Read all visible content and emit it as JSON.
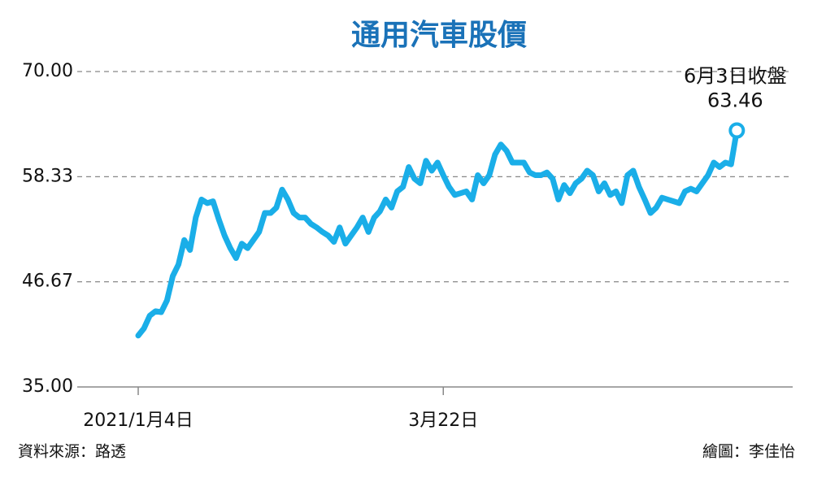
{
  "chart_data": {
    "type": "line",
    "title": "通用汽車股價",
    "annotation": "6月3日收盤",
    "source": "資料來源：路透",
    "credit": "繪圖：李佳怡",
    "categories": [
      "2021/1月4日",
      null,
      null,
      null,
      null,
      null,
      null,
      null,
      null,
      null,
      null,
      null,
      null,
      null,
      null,
      null,
      null,
      null,
      null,
      null,
      null,
      null,
      null,
      null,
      null,
      null,
      null,
      null,
      null,
      null,
      null,
      null,
      null,
      null,
      null,
      null,
      null,
      null,
      null,
      null,
      null,
      null,
      null,
      null,
      null,
      null,
      null,
      null,
      null,
      null,
      null,
      null,
      null,
      "3月22日",
      null,
      null,
      null,
      null,
      null,
      null,
      null,
      null,
      null,
      null,
      null,
      null,
      null,
      null,
      null,
      null,
      null,
      null,
      null,
      null,
      null,
      null,
      null,
      null,
      null,
      null,
      null,
      null,
      null,
      null,
      null,
      null,
      null,
      null,
      null,
      null,
      null,
      null,
      null,
      null,
      null,
      null,
      null,
      null,
      null,
      null,
      null,
      null,
      null,
      null,
      null
    ],
    "series": [
      {
        "name": "通用汽車",
        "color": "#1aaee8",
        "values": [
          40.7,
          41.5,
          42.9,
          43.4,
          43.3,
          44.6,
          47.3,
          48.6,
          51.3,
          50.2,
          53.8,
          55.8,
          55.4,
          55.6,
          53.6,
          51.8,
          50.4,
          49.3,
          50.9,
          50.4,
          51.3,
          52.2,
          54.3,
          54.3,
          54.9,
          56.9,
          55.8,
          54.3,
          53.8,
          53.8,
          53.1,
          52.7,
          52.2,
          51.8,
          51.1,
          52.7,
          50.9,
          51.8,
          52.7,
          53.8,
          52.2,
          53.8,
          54.5,
          55.8,
          54.9,
          56.7,
          57.2,
          59.4,
          58.1,
          57.6,
          60.1,
          59.0,
          59.9,
          58.5,
          57.2,
          56.3,
          56.5,
          56.7,
          55.8,
          58.5,
          57.6,
          58.5,
          60.8,
          61.9,
          61.2,
          59.9,
          59.9,
          59.9,
          58.8,
          58.5,
          58.5,
          58.8,
          58.1,
          55.8,
          57.4,
          56.5,
          57.6,
          58.1,
          59.0,
          58.5,
          56.7,
          57.6,
          56.3,
          56.7,
          55.4,
          58.5,
          59.0,
          57.2,
          55.8,
          54.3,
          54.9,
          56.0,
          55.8,
          55.6,
          55.4,
          56.7,
          57.0,
          56.7,
          57.6,
          58.5,
          59.9,
          59.4,
          59.9,
          59.7,
          63.46
        ]
      }
    ],
    "ylim": [
      35,
      70
    ],
    "yticks": [
      {
        "value": 35,
        "label": "35.00"
      },
      {
        "value": 46.67,
        "label": "46.67"
      },
      {
        "value": 58.33,
        "label": "58.33"
      },
      {
        "value": 70,
        "label": "70.00"
      }
    ],
    "grid": true
  }
}
